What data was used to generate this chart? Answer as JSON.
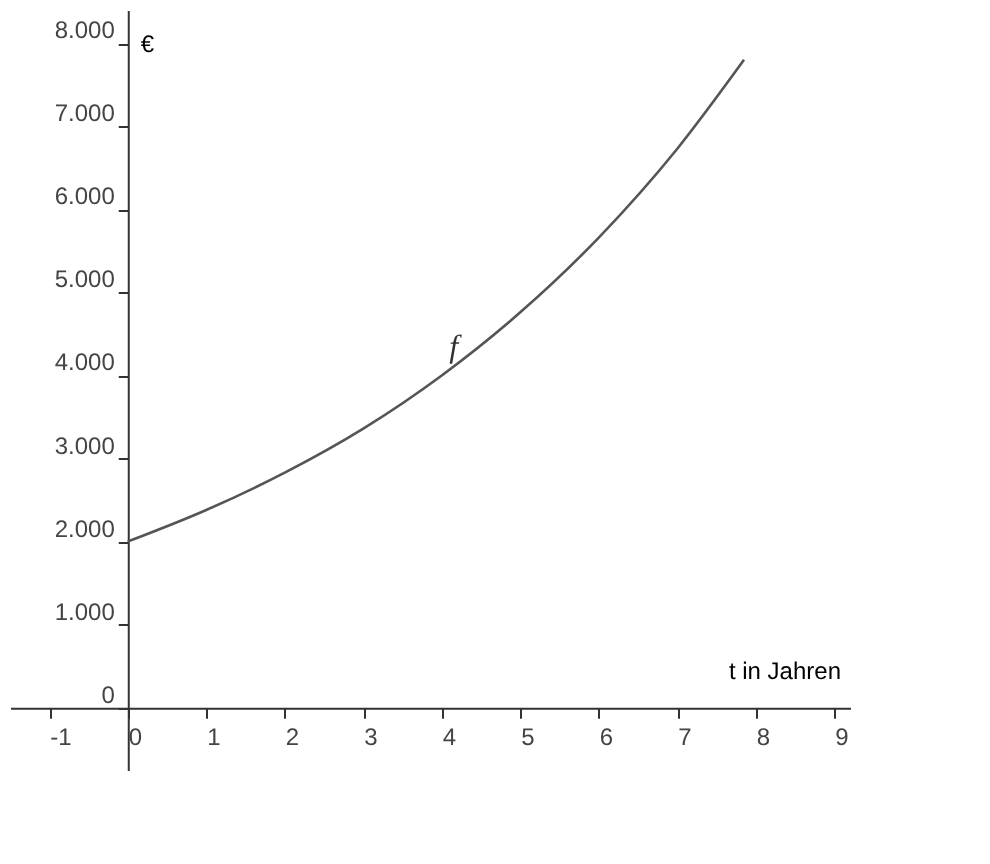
{
  "chart_data": {
    "type": "line",
    "xlabel": "t in Jahren",
    "ylabel": "€",
    "x": [
      0,
      1,
      2,
      3,
      4,
      5,
      6,
      7,
      7.85
    ],
    "series": [
      {
        "color": "#555555",
        "values": [
          2000,
          2380,
          2830,
          3360,
          4000,
          4760,
          5660,
          6730,
          7800
        ]
      }
    ],
    "xlim": [
      -1.5,
      9.2
    ],
    "ylim": [
      -750,
      8400
    ],
    "xticks": [
      {
        "value": -1,
        "label": "-1"
      },
      0,
      1,
      2,
      3,
      4,
      5,
      6,
      7,
      8,
      9
    ],
    "yticks": [
      0,
      {
        "value": 1000,
        "label": "1.000"
      },
      {
        "value": 2000,
        "label": "2.000"
      },
      {
        "value": 3000,
        "label": "3.000"
      },
      {
        "value": 4000,
        "label": "4.000"
      },
      {
        "value": 5000,
        "label": "5.000"
      },
      {
        "value": 6000,
        "label": "6.000"
      },
      {
        "value": 7000,
        "label": "7.000"
      },
      {
        "value": 8000,
        "label": "8.000"
      }
    ],
    "annotations": [
      {
        "text": "f",
        "x": 4,
        "y": 4000
      }
    ],
    "grid": false,
    "marker": "none",
    "line_style": "solid"
  }
}
